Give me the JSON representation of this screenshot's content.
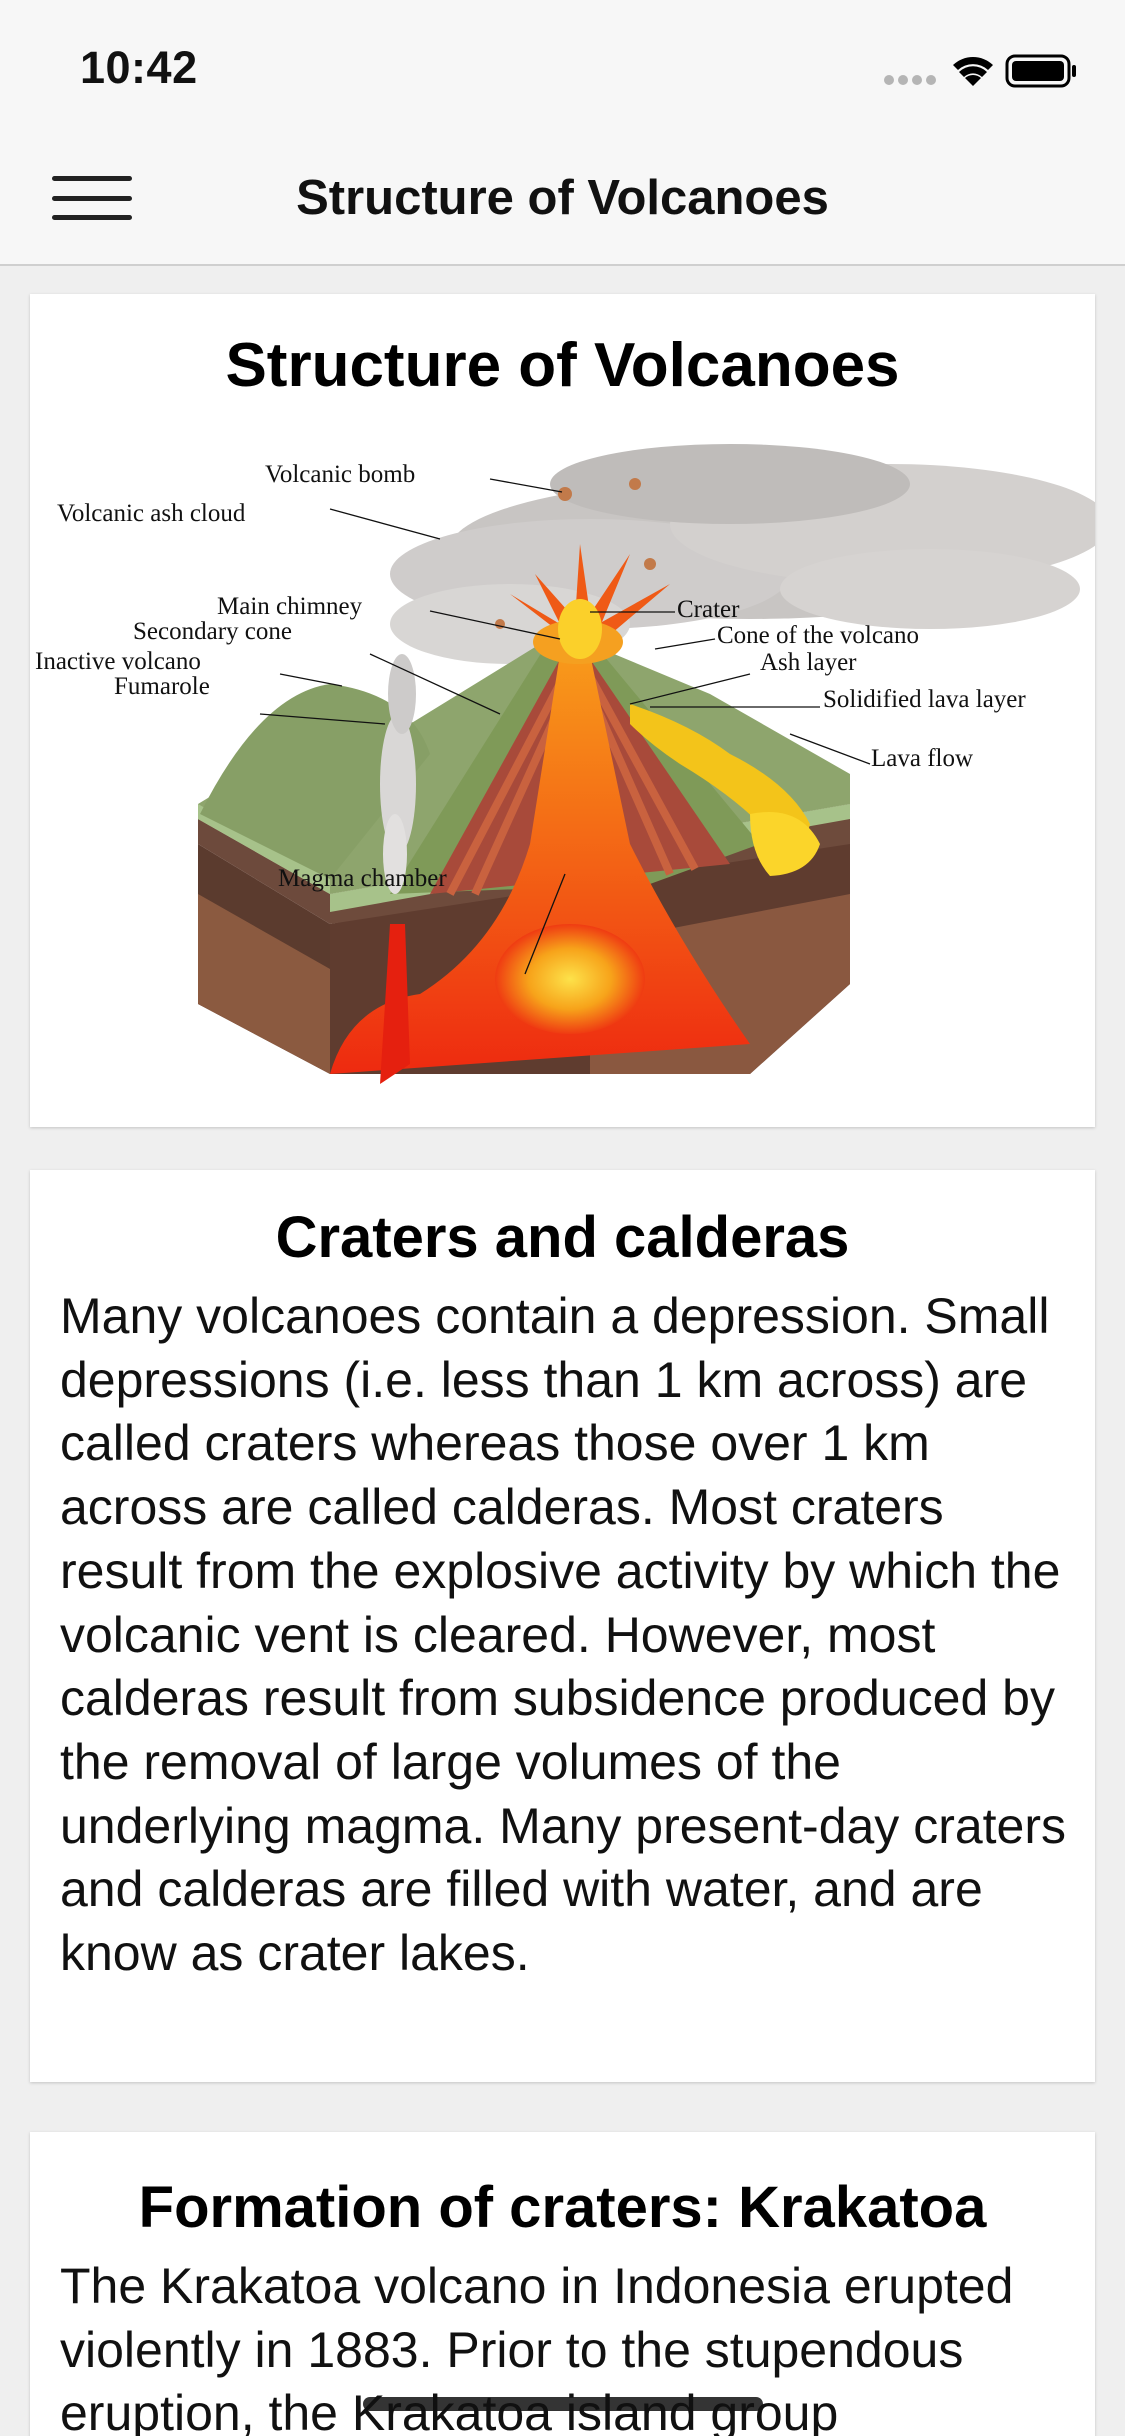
{
  "status": {
    "time": "10:42"
  },
  "nav": {
    "title": "Structure of Volcanoes"
  },
  "cards": [
    {
      "title": "Structure of Volcanoes",
      "labels": {
        "volcanic_bomb": "Volcanic bomb",
        "volcanic_ash_cloud": "Volcanic ash cloud",
        "main_chimney": "Main chimney",
        "secondary_cone": "Secondary cone",
        "inactive_volcano": "Inactive volcano",
        "fumarole": "Fumarole",
        "crater": "Crater",
        "cone_of_the_volcano": "Cone of the volcano",
        "ash_layer": "Ash layer",
        "solidified_lava_layer": "Solidified lava layer",
        "lava_flow": "Lava flow",
        "magma_chamber": "Magma chamber"
      }
    },
    {
      "title": "Craters and calderas",
      "body": "Many volcanoes contain a depression. Small depressions (i.e. less than 1 km across) are called craters whereas those over 1 km across are called calderas. Most craters result from the explosive activity by which the volcanic vent is cleared. However, most calderas result from subsidence produced by the removal of large volumes of the underlying magma. Many present-day craters and calderas are filled with water, and are know as crater lakes."
    },
    {
      "title": "Formation of craters: Krakatoa",
      "body": "The Krakatoa volcano in Indonesia erupted violently in 1883. Prior to the stupendous eruption, the Krakatoa island group"
    }
  ],
  "icons": {
    "menu": "hamburger-menu-icon",
    "signal": "cellular-signal-icon",
    "wifi": "wifi-icon",
    "battery": "battery-icon"
  },
  "colors": {
    "bar_background": "#f7f7f7",
    "page_background": "#efefef",
    "card_background": "#ffffff"
  }
}
